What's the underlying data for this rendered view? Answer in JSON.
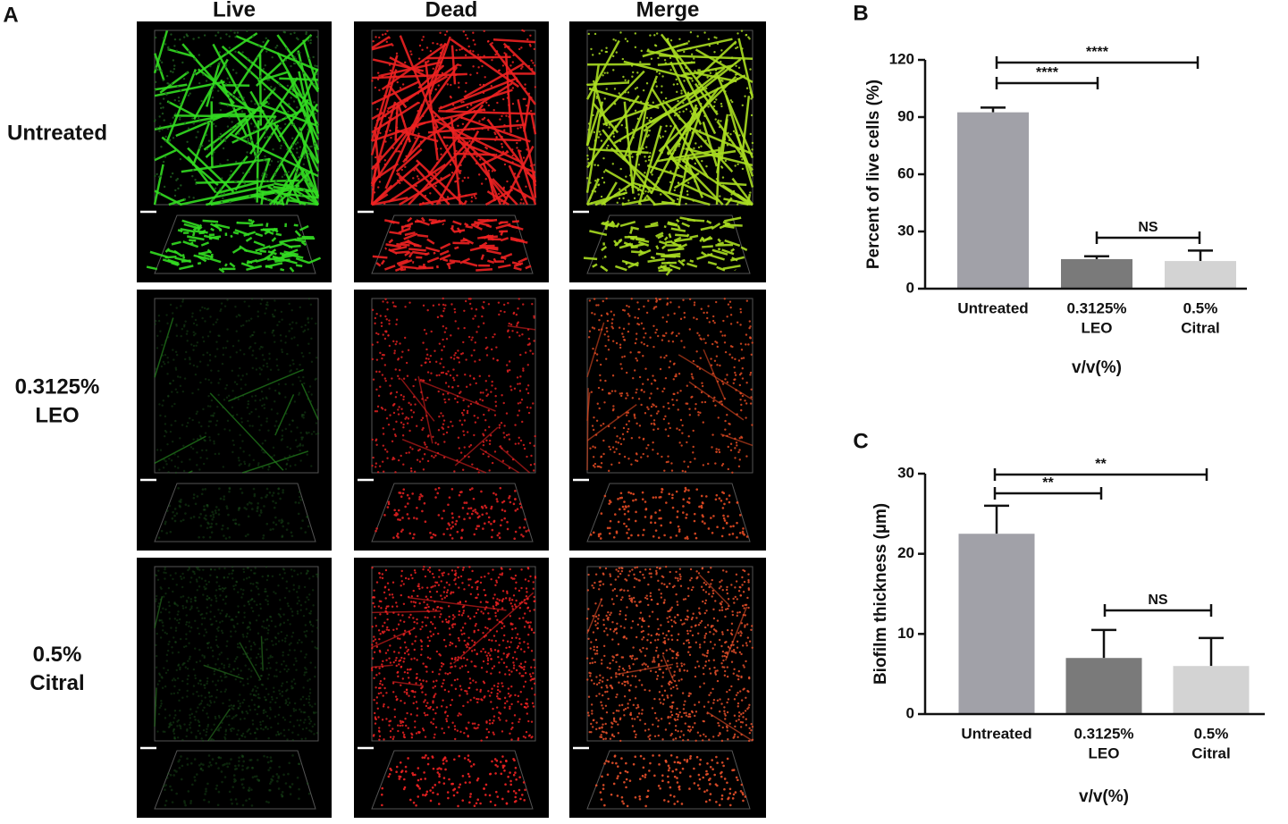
{
  "panel_a": {
    "label": "A",
    "columns": [
      "Live",
      "Dead",
      "Merge"
    ],
    "rows": [
      [
        "Untreated"
      ],
      [
        "0.3125%",
        "LEO"
      ],
      [
        "0.5%",
        "Citral"
      ]
    ]
  },
  "chart_data": [
    {
      "type": "bar",
      "label": "B",
      "y_label": "Percent of live cells (%)",
      "x_label": "v/v(%)",
      "categories": [
        [
          "Untreated"
        ],
        [
          "0.3125%",
          "LEO"
        ],
        [
          "0.5%",
          "Citral"
        ]
      ],
      "values": [
        92.5,
        15.5,
        14.5
      ],
      "errors": [
        2.5,
        1.5,
        5.5
      ],
      "colors": [
        "#a1a1a8",
        "#7a7a7a",
        "#d3d3d3"
      ],
      "ylim": [
        0,
        120
      ],
      "yticks": [
        0,
        30,
        60,
        90,
        120
      ],
      "annotations": [
        "****",
        "****",
        "NS"
      ]
    },
    {
      "type": "bar",
      "label": "C",
      "y_label": "Biofilm thickness (µm)",
      "x_label": "v/v(%)",
      "categories": [
        [
          "Untreated"
        ],
        [
          "0.3125%",
          "LEO"
        ],
        [
          "0.5%",
          "Citral"
        ]
      ],
      "values": [
        22.5,
        7,
        6
      ],
      "errors": [
        3.5,
        3.5,
        3.5
      ],
      "colors": [
        "#a1a1a8",
        "#7a7a7a",
        "#d3d3d3"
      ],
      "ylim": [
        0,
        30
      ],
      "yticks": [
        0,
        10,
        20,
        30
      ],
      "annotations": [
        "**",
        "**",
        "NS"
      ]
    }
  ]
}
